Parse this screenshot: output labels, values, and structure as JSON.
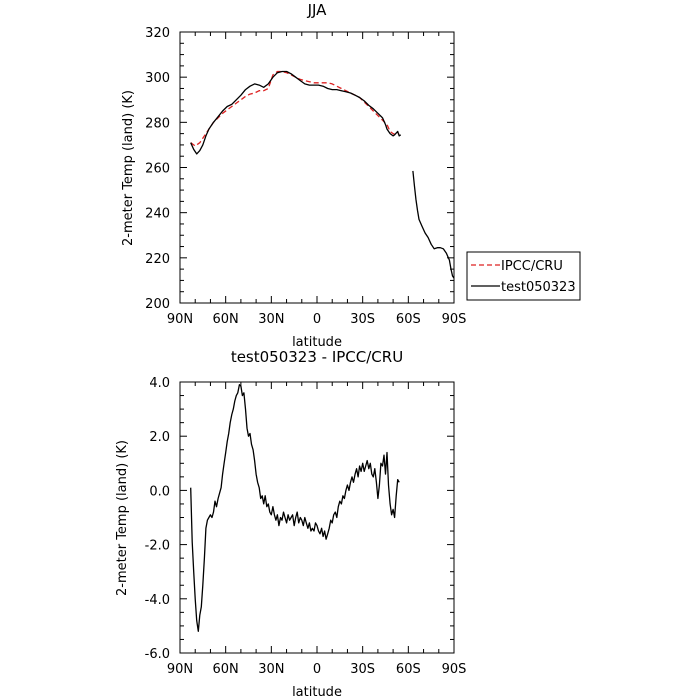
{
  "chart_data": [
    {
      "type": "line",
      "title": "JJA",
      "xlabel": "latitude",
      "ylabel": "2-meter Temp (land) (K)",
      "xlim": [
        -90,
        90
      ],
      "ylim": [
        200,
        320
      ],
      "x_ticks": [
        -90,
        -60,
        -30,
        0,
        30,
        60,
        90
      ],
      "x_tick_labels": [
        "90N",
        "60N",
        "30N",
        "0",
        "30S",
        "60S",
        "90S"
      ],
      "y_ticks": [
        200,
        220,
        240,
        260,
        280,
        300,
        320
      ],
      "y_tick_labels": [
        "200",
        "220",
        "240",
        "260",
        "280",
        "300",
        "320"
      ],
      "legend_position": "right",
      "series": [
        {
          "name": "IPCC/CRU",
          "color": "#dd2222",
          "dash": "dashed",
          "points": [
            [
              -83,
              271
            ],
            [
              -80,
              269.5
            ],
            [
              -77,
              271
            ],
            [
              -74,
              274
            ],
            [
              -71,
              277
            ],
            [
              -68,
              280
            ],
            [
              -65,
              282
            ],
            [
              -62,
              284
            ],
            [
              -59,
              285.5
            ],
            [
              -56,
              287
            ],
            [
              -53,
              288.5
            ],
            [
              -50,
              290
            ],
            [
              -47,
              291.5
            ],
            [
              -44,
              292.5
            ],
            [
              -41,
              293
            ],
            [
              -38,
              294
            ],
            [
              -35,
              294
            ],
            [
              -32,
              295
            ],
            [
              -29,
              301
            ],
            [
              -26,
              302.5
            ],
            [
              -23,
              302.5
            ],
            [
              -20,
              302
            ],
            [
              -17,
              301
            ],
            [
              -14,
              300
            ],
            [
              -11,
              299
            ],
            [
              -8,
              298.5
            ],
            [
              -5,
              298
            ],
            [
              -2,
              297.5
            ],
            [
              1,
              297.5
            ],
            [
              4,
              297.5
            ],
            [
              7,
              297.5
            ],
            [
              10,
              297
            ],
            [
              13,
              296
            ],
            [
              16,
              295
            ],
            [
              19,
              294
            ],
            [
              22,
              293
            ],
            [
              25,
              292
            ],
            [
              28,
              291
            ],
            [
              31,
              289
            ],
            [
              34,
              287
            ],
            [
              37,
              285
            ],
            [
              40,
              283
            ],
            [
              43,
              281
            ],
            [
              46,
              279
            ],
            [
              48,
              276
            ],
            [
              50,
              275
            ],
            [
              52,
              274.5
            ],
            [
              54,
              275
            ]
          ]
        },
        {
          "name": "test050323",
          "color": "#000000",
          "dash": "solid",
          "points": [
            [
              -83,
              271
            ],
            [
              -81,
              268
            ],
            [
              -79,
              266
            ],
            [
              -77,
              267.5
            ],
            [
              -75,
              270
            ],
            [
              -73,
              274
            ],
            [
              -71,
              277
            ],
            [
              -68,
              280
            ],
            [
              -65,
              282.5
            ],
            [
              -62,
              285
            ],
            [
              -59,
              287
            ],
            [
              -56,
              288
            ],
            [
              -53,
              290
            ],
            [
              -50,
              292
            ],
            [
              -47,
              294.5
            ],
            [
              -44,
              296
            ],
            [
              -41,
              297
            ],
            [
              -38,
              296.5
            ],
            [
              -35,
              295.5
            ],
            [
              -32,
              297
            ],
            [
              -29,
              300
            ],
            [
              -26,
              302
            ],
            [
              -23,
              302.5
            ],
            [
              -20,
              302.5
            ],
            [
              -17,
              301.5
            ],
            [
              -14,
              300
            ],
            [
              -11,
              298.5
            ],
            [
              -8,
              297
            ],
            [
              -5,
              296.5
            ],
            [
              -2,
              296.5
            ],
            [
              1,
              296.5
            ],
            [
              4,
              296
            ],
            [
              7,
              295
            ],
            [
              10,
              294.5
            ],
            [
              13,
              294.5
            ],
            [
              16,
              294
            ],
            [
              19,
              293.5
            ],
            [
              22,
              293
            ],
            [
              25,
              292
            ],
            [
              28,
              291
            ],
            [
              31,
              289.5
            ],
            [
              34,
              287.5
            ],
            [
              37,
              286
            ],
            [
              40,
              284
            ],
            [
              43,
              282
            ],
            [
              45,
              279
            ],
            [
              46,
              277
            ],
            [
              48,
              275
            ],
            [
              50,
              274
            ],
            [
              51,
              274.5
            ],
            [
              53,
              276
            ],
            [
              54,
              274
            ],
            [
              55,
              274.5
            ]
          ],
          "points_extra": [
            [
              63,
              258.5
            ],
            [
              64,
              252
            ],
            [
              65,
              246
            ],
            [
              66,
              241
            ],
            [
              67,
              237
            ],
            [
              69,
              234
            ],
            [
              71,
              231
            ],
            [
              73,
              229
            ],
            [
              75,
              226
            ],
            [
              77,
              224
            ],
            [
              79,
              224.5
            ],
            [
              81,
              224.5
            ],
            [
              83,
              224
            ],
            [
              85,
              222
            ],
            [
              87,
              219
            ],
            [
              88,
              215
            ],
            [
              89,
              212
            ],
            [
              90,
              211
            ]
          ]
        }
      ]
    },
    {
      "type": "line",
      "title": "test050323 - IPCC/CRU",
      "xlabel": "latitude",
      "ylabel": "2-meter Temp (land) (K)",
      "xlim": [
        -90,
        90
      ],
      "ylim": [
        -6,
        4
      ],
      "x_ticks": [
        -90,
        -60,
        -30,
        0,
        30,
        60,
        90
      ],
      "x_tick_labels": [
        "90N",
        "60N",
        "30N",
        "0",
        "30S",
        "60S",
        "90S"
      ],
      "y_ticks": [
        -6,
        -4,
        -2,
        0,
        2,
        4
      ],
      "y_tick_labels": [
        "-6.0",
        "-4.0",
        "-2.0",
        "0.0",
        "2.0",
        "4.0"
      ],
      "series": [
        {
          "color": "#000000",
          "dash": "solid",
          "points": [
            [
              -83,
              0.1
            ],
            [
              -82,
              -1.9
            ],
            [
              -81,
              -3
            ],
            [
              -80,
              -4
            ],
            [
              -79,
              -4.8
            ],
            [
              -78,
              -5.2
            ],
            [
              -77,
              -4.6
            ],
            [
              -76,
              -4.3
            ],
            [
              -75,
              -3.5
            ],
            [
              -74,
              -2.5
            ],
            [
              -73,
              -1.4
            ],
            [
              -72,
              -1.1
            ],
            [
              -71,
              -1.0
            ],
            [
              -70,
              -0.9
            ],
            [
              -69,
              -1.0
            ],
            [
              -68,
              -0.8
            ],
            [
              -67,
              -0.4
            ],
            [
              -66,
              -0.6
            ],
            [
              -65,
              -0.3
            ],
            [
              -64,
              -0.1
            ],
            [
              -63,
              0.1
            ],
            [
              -62,
              0.6
            ],
            [
              -61,
              1.0
            ],
            [
              -60,
              1.4
            ],
            [
              -59,
              1.8
            ],
            [
              -58,
              2.1
            ],
            [
              -57,
              2.5
            ],
            [
              -56,
              2.8
            ],
            [
              -55,
              3.0
            ],
            [
              -54,
              3.3
            ],
            [
              -53,
              3.5
            ],
            [
              -52,
              3.6
            ],
            [
              -51,
              3.9
            ],
            [
              -50,
              3.85
            ],
            [
              -49,
              3.5
            ],
            [
              -48,
              3.6
            ],
            [
              -47,
              3.0
            ],
            [
              -46,
              2.3
            ],
            [
              -45,
              2.0
            ],
            [
              -44,
              2.1
            ],
            [
              -43,
              1.7
            ],
            [
              -42,
              1.5
            ],
            [
              -41,
              1.1
            ],
            [
              -40,
              0.6
            ],
            [
              -39,
              0.3
            ],
            [
              -38,
              0.1
            ],
            [
              -37,
              -0.3
            ],
            [
              -36,
              -0.2
            ],
            [
              -35,
              -0.5
            ],
            [
              -34,
              -0.2
            ],
            [
              -33,
              -0.6
            ],
            [
              -32,
              -0.5
            ],
            [
              -31,
              -0.8
            ],
            [
              -30,
              -0.9
            ],
            [
              -29,
              -0.6
            ],
            [
              -28,
              -0.9
            ],
            [
              -27,
              -1.1
            ],
            [
              -26,
              -0.9
            ],
            [
              -25,
              -1.3
            ],
            [
              -24,
              -1.0
            ],
            [
              -23,
              -1.1
            ],
            [
              -22,
              -0.8
            ],
            [
              -21,
              -1.0
            ],
            [
              -20,
              -1.2
            ],
            [
              -19,
              -0.9
            ],
            [
              -18,
              -1.1
            ],
            [
              -17,
              -1.0
            ],
            [
              -16,
              -0.9
            ],
            [
              -15,
              -1.3
            ],
            [
              -14,
              -1.0
            ],
            [
              -13,
              -0.8
            ],
            [
              -12,
              -1.2
            ],
            [
              -11,
              -1.0
            ],
            [
              -10,
              -1.1
            ],
            [
              -9,
              -1.3
            ],
            [
              -8,
              -1.0
            ],
            [
              -7,
              -1.2
            ],
            [
              -6,
              -1.4
            ],
            [
              -5,
              -1.2
            ],
            [
              -4,
              -1.5
            ],
            [
              -3,
              -1.4
            ],
            [
              -2,
              -1.5
            ],
            [
              -1,
              -1.2
            ],
            [
              0,
              -1.3
            ],
            [
              1,
              -1.5
            ],
            [
              2,
              -1.6
            ],
            [
              3,
              -1.4
            ],
            [
              4,
              -1.7
            ],
            [
              5,
              -1.5
            ],
            [
              6,
              -1.8
            ],
            [
              7,
              -1.6
            ],
            [
              8,
              -1.4
            ],
            [
              9,
              -1.1
            ],
            [
              10,
              -1.2
            ],
            [
              11,
              -0.9
            ],
            [
              12,
              -0.8
            ],
            [
              13,
              -1.0
            ],
            [
              14,
              -0.6
            ],
            [
              15,
              -0.4
            ],
            [
              16,
              -0.5
            ],
            [
              17,
              -0.2
            ],
            [
              18,
              -0.3
            ],
            [
              19,
              0.0
            ],
            [
              20,
              0.2
            ],
            [
              21,
              0.0
            ],
            [
              22,
              0.3
            ],
            [
              23,
              0.5
            ],
            [
              24,
              0.3
            ],
            [
              25,
              0.6
            ],
            [
              26,
              0.8
            ],
            [
              27,
              0.5
            ],
            [
              28,
              0.9
            ],
            [
              29,
              0.7
            ],
            [
              30,
              1.0
            ],
            [
              31,
              0.7
            ],
            [
              32,
              0.9
            ],
            [
              33,
              1.1
            ],
            [
              34,
              0.8
            ],
            [
              35,
              1.0
            ],
            [
              36,
              0.6
            ],
            [
              37,
              0.5
            ],
            [
              38,
              0.8
            ],
            [
              39,
              0.3
            ],
            [
              40,
              -0.3
            ],
            [
              41,
              0.2
            ],
            [
              42,
              1.0
            ],
            [
              43,
              0.9
            ],
            [
              44,
              1.3
            ],
            [
              45,
              0.6
            ],
            [
              46,
              1.4
            ],
            [
              47,
              0.2
            ],
            [
              48,
              -0.5
            ],
            [
              49,
              -0.9
            ],
            [
              50,
              -0.7
            ],
            [
              51,
              -1.0
            ],
            [
              52,
              -0.2
            ],
            [
              53,
              0.4
            ],
            [
              54,
              0.3
            ]
          ]
        }
      ]
    }
  ]
}
